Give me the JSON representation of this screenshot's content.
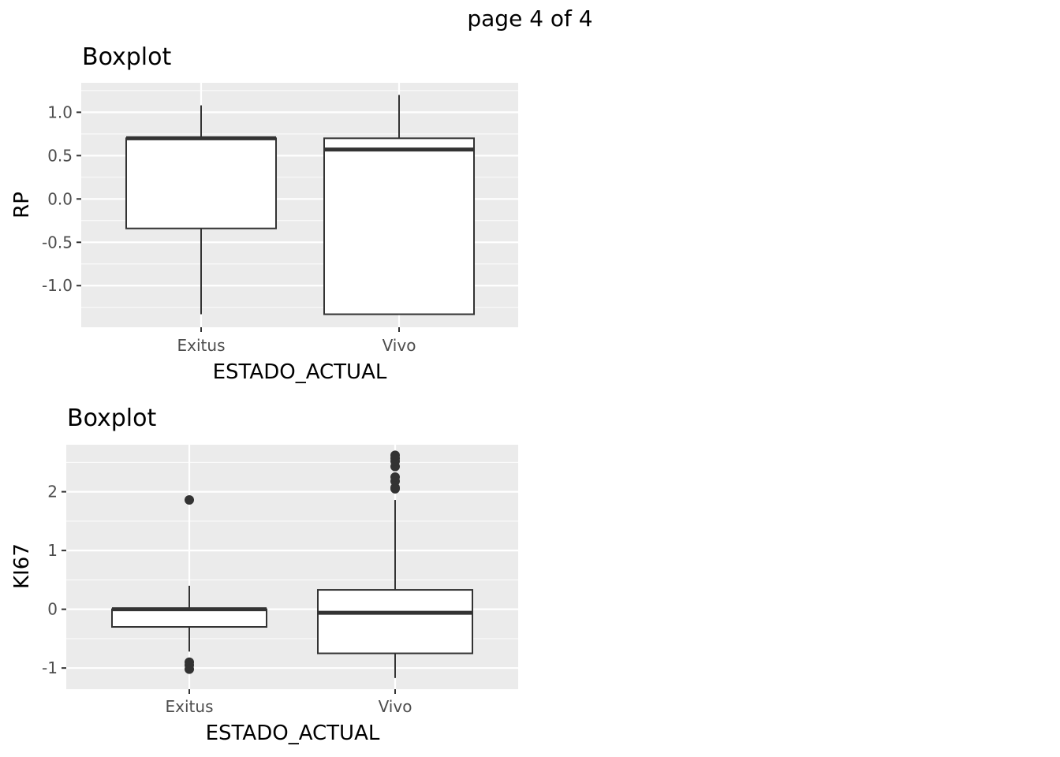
{
  "page_label": "page 4 of 4",
  "chart_data": [
    {
      "type": "boxplot",
      "title": "Boxplot",
      "xlabel": "ESTADO_ACTUAL",
      "ylabel": "RP",
      "categories": [
        "Exitus",
        "Vivo"
      ],
      "ylim": [
        -1.48,
        1.34
      ],
      "yticks": [
        -1.0,
        -0.5,
        0.0,
        0.5,
        1.0
      ],
      "ytick_labels": [
        "-1.0",
        "-0.5",
        "0.0",
        "0.5",
        "1.0"
      ],
      "boxes": [
        {
          "category": "Exitus",
          "whisker_low": -1.33,
          "q1": -0.34,
          "median": 0.7,
          "q3": 0.7,
          "whisker_high": 1.08,
          "outliers": []
        },
        {
          "category": "Vivo",
          "whisker_low": -1.33,
          "q1": -1.33,
          "median": 0.57,
          "q3": 0.7,
          "whisker_high": 1.2,
          "outliers": []
        }
      ],
      "grid": true,
      "panel_background": "#ebebeb",
      "box_fill": "#ffffff",
      "line_color": "#333333"
    },
    {
      "type": "boxplot",
      "title": "Boxplot",
      "xlabel": "ESTADO_ACTUAL",
      "ylabel": "KI67",
      "categories": [
        "Exitus",
        "Vivo"
      ],
      "ylim": [
        -1.36,
        2.8
      ],
      "yticks": [
        -1,
        0,
        1,
        2
      ],
      "ytick_labels": [
        "-1",
        "0",
        "1",
        "2"
      ],
      "boxes": [
        {
          "category": "Exitus",
          "whisker_low": -0.72,
          "q1": -0.3,
          "median": 0.0,
          "q3": 0.0,
          "whisker_high": 0.4,
          "outliers": [
            1.86,
            -0.9,
            -0.95,
            -1.02
          ]
        },
        {
          "category": "Vivo",
          "whisker_low": -1.17,
          "q1": -0.75,
          "median": -0.06,
          "q3": 0.33,
          "whisker_high": 1.86,
          "outliers": [
            2.05,
            2.07,
            2.18,
            2.25,
            2.43,
            2.52,
            2.57,
            2.62
          ]
        }
      ],
      "grid": true,
      "panel_background": "#ebebeb",
      "box_fill": "#ffffff",
      "line_color": "#333333"
    }
  ]
}
